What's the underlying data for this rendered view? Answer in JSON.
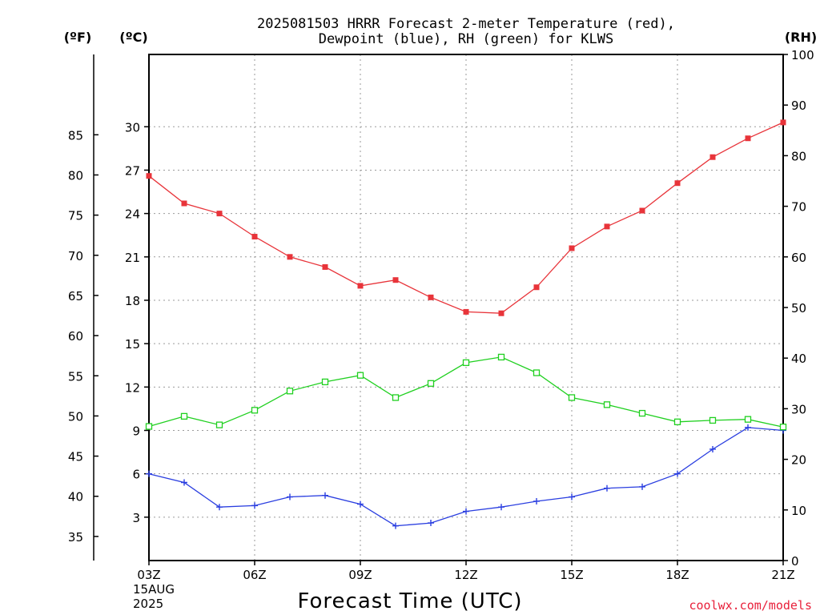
{
  "chart_data": {
    "type": "line",
    "title_line1": "2025081503 HRRR Forecast 2-meter Temperature (red),",
    "title_line2": "Dewpoint (blue), RH (green) for KLWS",
    "xlabel": "Forecast Time (UTC)",
    "start_date_label": [
      "15AUG",
      "2025"
    ],
    "credit": "coolwx.com/models",
    "credit_color": "#e8203a",
    "axes": {
      "f_unit": "(ºF)",
      "c_unit": "(ºC)",
      "rh_unit": "(RH)",
      "c_range": [
        0,
        35
      ],
      "rh_range": [
        0,
        100
      ],
      "f_ticks": [
        35,
        40,
        45,
        50,
        55,
        60,
        65,
        70,
        75,
        80,
        85
      ],
      "c_ticks": [
        3,
        6,
        9,
        12,
        15,
        18,
        21,
        24,
        27,
        30
      ],
      "rh_ticks": [
        0,
        10,
        20,
        30,
        40,
        50,
        60,
        70,
        80,
        90,
        100
      ],
      "x_ticks": [
        {
          "index": 0,
          "label": "03Z"
        },
        {
          "index": 3,
          "label": "06Z"
        },
        {
          "index": 6,
          "label": "09Z"
        },
        {
          "index": 9,
          "label": "12Z"
        },
        {
          "index": 12,
          "label": "15Z"
        },
        {
          "index": 15,
          "label": "18Z"
        },
        {
          "index": 18,
          "label": "21Z"
        }
      ],
      "grid": true
    },
    "hours": [
      "03Z",
      "04Z",
      "05Z",
      "06Z",
      "07Z",
      "08Z",
      "09Z",
      "10Z",
      "11Z",
      "12Z",
      "13Z",
      "14Z",
      "15Z",
      "16Z",
      "17Z",
      "18Z",
      "19Z",
      "20Z",
      "21Z"
    ],
    "series": [
      {
        "name": "Temperature",
        "color": "#e8343a",
        "marker": "filled-square",
        "axis": "c",
        "values": [
          26.6,
          24.7,
          24.0,
          22.4,
          21.0,
          20.3,
          19.0,
          19.4,
          18.2,
          17.2,
          17.1,
          18.9,
          21.6,
          23.1,
          24.2,
          26.1,
          27.9,
          29.2,
          30.3
        ]
      },
      {
        "name": "Dewpoint",
        "color": "#2a3ee0",
        "marker": "plus",
        "axis": "c",
        "values": [
          6.0,
          5.4,
          3.7,
          3.8,
          4.4,
          4.5,
          3.9,
          2.4,
          2.6,
          3.4,
          3.7,
          4.1,
          4.4,
          5.0,
          5.1,
          6.0,
          7.7,
          9.2,
          9.0
        ]
      },
      {
        "name": "RH",
        "color": "#20d020",
        "marker": "open-square",
        "axis": "rh",
        "values": [
          26.5,
          28.5,
          26.8,
          29.7,
          33.5,
          35.3,
          36.6,
          32.2,
          35.0,
          39.1,
          40.2,
          37.1,
          32.2,
          30.8,
          29.1,
          27.4,
          27.7,
          27.9,
          26.4
        ]
      }
    ]
  }
}
